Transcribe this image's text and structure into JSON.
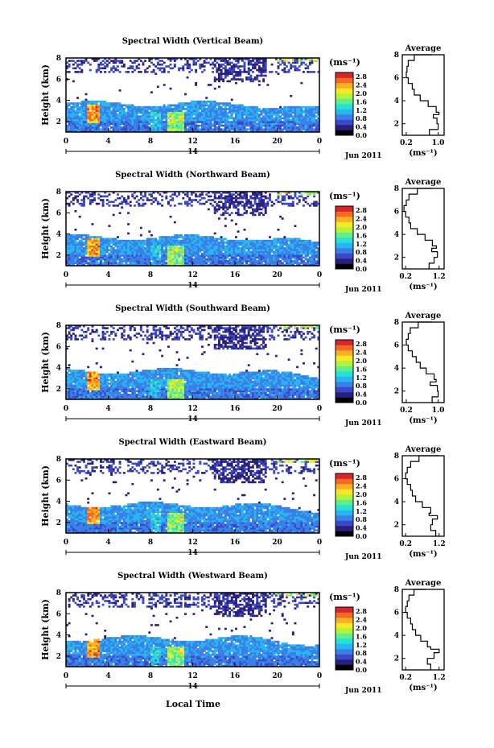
{
  "figure": {
    "xlabel": "Local Time",
    "xticks": [
      "0",
      "4",
      "8",
      "12",
      "16",
      "20",
      "0"
    ],
    "day_label": "14",
    "month_label": "Jun 2011",
    "ylabel": "Height (km)",
    "yticks": [
      "2",
      "4",
      "6",
      "8"
    ],
    "unit_label": "(ms⁻¹)",
    "colorbar_ticks": [
      "2.8",
      "2.4",
      "2.0",
      "1.6",
      "1.2",
      "0.8",
      "0.4",
      "0.0"
    ],
    "avg_title": "Average",
    "avg_yticks": [
      "2",
      "4",
      "6",
      "8"
    ]
  },
  "colors": {
    "colormap": [
      "#000000",
      "#2a1f7a",
      "#3b49c8",
      "#3a7fe8",
      "#28b6f0",
      "#27e0d8",
      "#5ef08a",
      "#b7f23a",
      "#f6ea26",
      "#fbb024",
      "#f46a25",
      "#d8242b"
    ]
  },
  "chart_data": [
    {
      "type": "heatmap",
      "title": "Spectral Width (Vertical Beam)",
      "x_range": [
        0,
        24
      ],
      "y_range": [
        1,
        8
      ],
      "z_range": [
        0,
        3.0
      ],
      "profile_title": "Average",
      "profile_xticks": [
        "0.2",
        "1.0"
      ],
      "profile_xlabel": "(ms⁻¹)",
      "profile_x_range": [
        0.1,
        1.15
      ],
      "profile": [
        [
          1.0,
          0.78
        ],
        [
          1.5,
          1.0
        ],
        [
          2.0,
          0.97
        ],
        [
          2.5,
          0.88
        ],
        [
          2.8,
          1.02
        ],
        [
          3.0,
          0.95
        ],
        [
          3.5,
          0.75
        ],
        [
          4.0,
          0.55
        ],
        [
          4.5,
          0.4
        ],
        [
          5.0,
          0.35
        ],
        [
          5.5,
          0.25
        ],
        [
          6.0,
          0.2
        ],
        [
          6.5,
          0.22
        ],
        [
          7.0,
          0.25
        ],
        [
          7.5,
          0.4
        ],
        [
          8.0,
          0.85
        ]
      ]
    },
    {
      "type": "heatmap",
      "title": "Spectral Width (Northward Beam)",
      "x_range": [
        0,
        24
      ],
      "y_range": [
        1,
        8
      ],
      "z_range": [
        0,
        3.0
      ],
      "profile_title": "Average",
      "profile_xticks": [
        "0.2",
        "1.2"
      ],
      "profile_xlabel": "(ms⁻¹)",
      "profile_x_range": [
        0.1,
        1.35
      ],
      "profile": [
        [
          1.0,
          0.9
        ],
        [
          1.5,
          1.05
        ],
        [
          2.0,
          1.15
        ],
        [
          2.5,
          0.98
        ],
        [
          2.8,
          1.12
        ],
        [
          3.0,
          1.0
        ],
        [
          3.5,
          0.78
        ],
        [
          4.0,
          0.55
        ],
        [
          4.5,
          0.35
        ],
        [
          5.0,
          0.3
        ],
        [
          5.5,
          0.2
        ],
        [
          6.0,
          0.15
        ],
        [
          6.5,
          0.22
        ],
        [
          7.0,
          0.3
        ],
        [
          7.5,
          0.55
        ],
        [
          8.0,
          1.0
        ]
      ]
    },
    {
      "type": "heatmap",
      "title": "Spectral Width (Southward Beam)",
      "x_range": [
        0,
        24
      ],
      "y_range": [
        1,
        8
      ],
      "z_range": [
        0,
        3.0
      ],
      "profile_title": "Average",
      "profile_xticks": [
        "0.2",
        "1.0"
      ],
      "profile_xlabel": "(ms⁻¹)",
      "profile_x_range": [
        0.1,
        1.15
      ],
      "profile": [
        [
          1.0,
          0.85
        ],
        [
          1.5,
          1.0
        ],
        [
          2.0,
          0.98
        ],
        [
          2.5,
          0.8
        ],
        [
          2.8,
          0.95
        ],
        [
          3.0,
          0.9
        ],
        [
          3.5,
          0.7
        ],
        [
          4.0,
          0.55
        ],
        [
          4.5,
          0.45
        ],
        [
          5.0,
          0.35
        ],
        [
          5.5,
          0.25
        ],
        [
          6.0,
          0.2
        ],
        [
          6.5,
          0.25
        ],
        [
          7.0,
          0.3
        ],
        [
          7.5,
          0.5
        ],
        [
          8.0,
          0.85
        ]
      ]
    },
    {
      "type": "heatmap",
      "title": "Spectral Width (Eastward Beam)",
      "x_range": [
        0,
        24
      ],
      "y_range": [
        1,
        8
      ],
      "z_range": [
        0,
        3.0
      ],
      "profile_title": "Average",
      "profile_xticks": [
        "0.2",
        "1.2"
      ],
      "profile_xlabel": "(ms⁻¹)",
      "profile_x_range": [
        0.1,
        1.35
      ],
      "profile": [
        [
          1.0,
          1.1
        ],
        [
          1.5,
          0.95
        ],
        [
          2.0,
          1.0
        ],
        [
          2.5,
          1.15
        ],
        [
          2.8,
          0.9
        ],
        [
          3.0,
          0.95
        ],
        [
          3.5,
          0.7
        ],
        [
          4.0,
          0.5
        ],
        [
          4.5,
          0.4
        ],
        [
          5.0,
          0.35
        ],
        [
          5.5,
          0.25
        ],
        [
          6.0,
          0.2
        ],
        [
          6.5,
          0.25
        ],
        [
          7.0,
          0.35
        ],
        [
          7.5,
          0.6
        ],
        [
          8.0,
          1.2
        ]
      ]
    },
    {
      "type": "heatmap",
      "title": "Spectral Width (Westward Beam)",
      "x_range": [
        0,
        24
      ],
      "y_range": [
        1,
        8
      ],
      "z_range": [
        0,
        3.0
      ],
      "profile_title": "Average",
      "profile_xticks": [
        "0.2",
        "1.2"
      ],
      "profile_xlabel": "(ms⁻¹)",
      "profile_x_range": [
        0.1,
        1.35
      ],
      "profile": [
        [
          1.0,
          0.95
        ],
        [
          1.5,
          0.85
        ],
        [
          2.0,
          1.05
        ],
        [
          2.5,
          1.2
        ],
        [
          2.8,
          0.95
        ],
        [
          3.0,
          0.85
        ],
        [
          3.5,
          0.65
        ],
        [
          4.0,
          0.5
        ],
        [
          4.5,
          0.4
        ],
        [
          5.0,
          0.35
        ],
        [
          5.5,
          0.25
        ],
        [
          6.0,
          0.2
        ],
        [
          6.5,
          0.25
        ],
        [
          7.0,
          0.3
        ],
        [
          7.5,
          0.45
        ],
        [
          8.0,
          0.8
        ]
      ]
    }
  ]
}
